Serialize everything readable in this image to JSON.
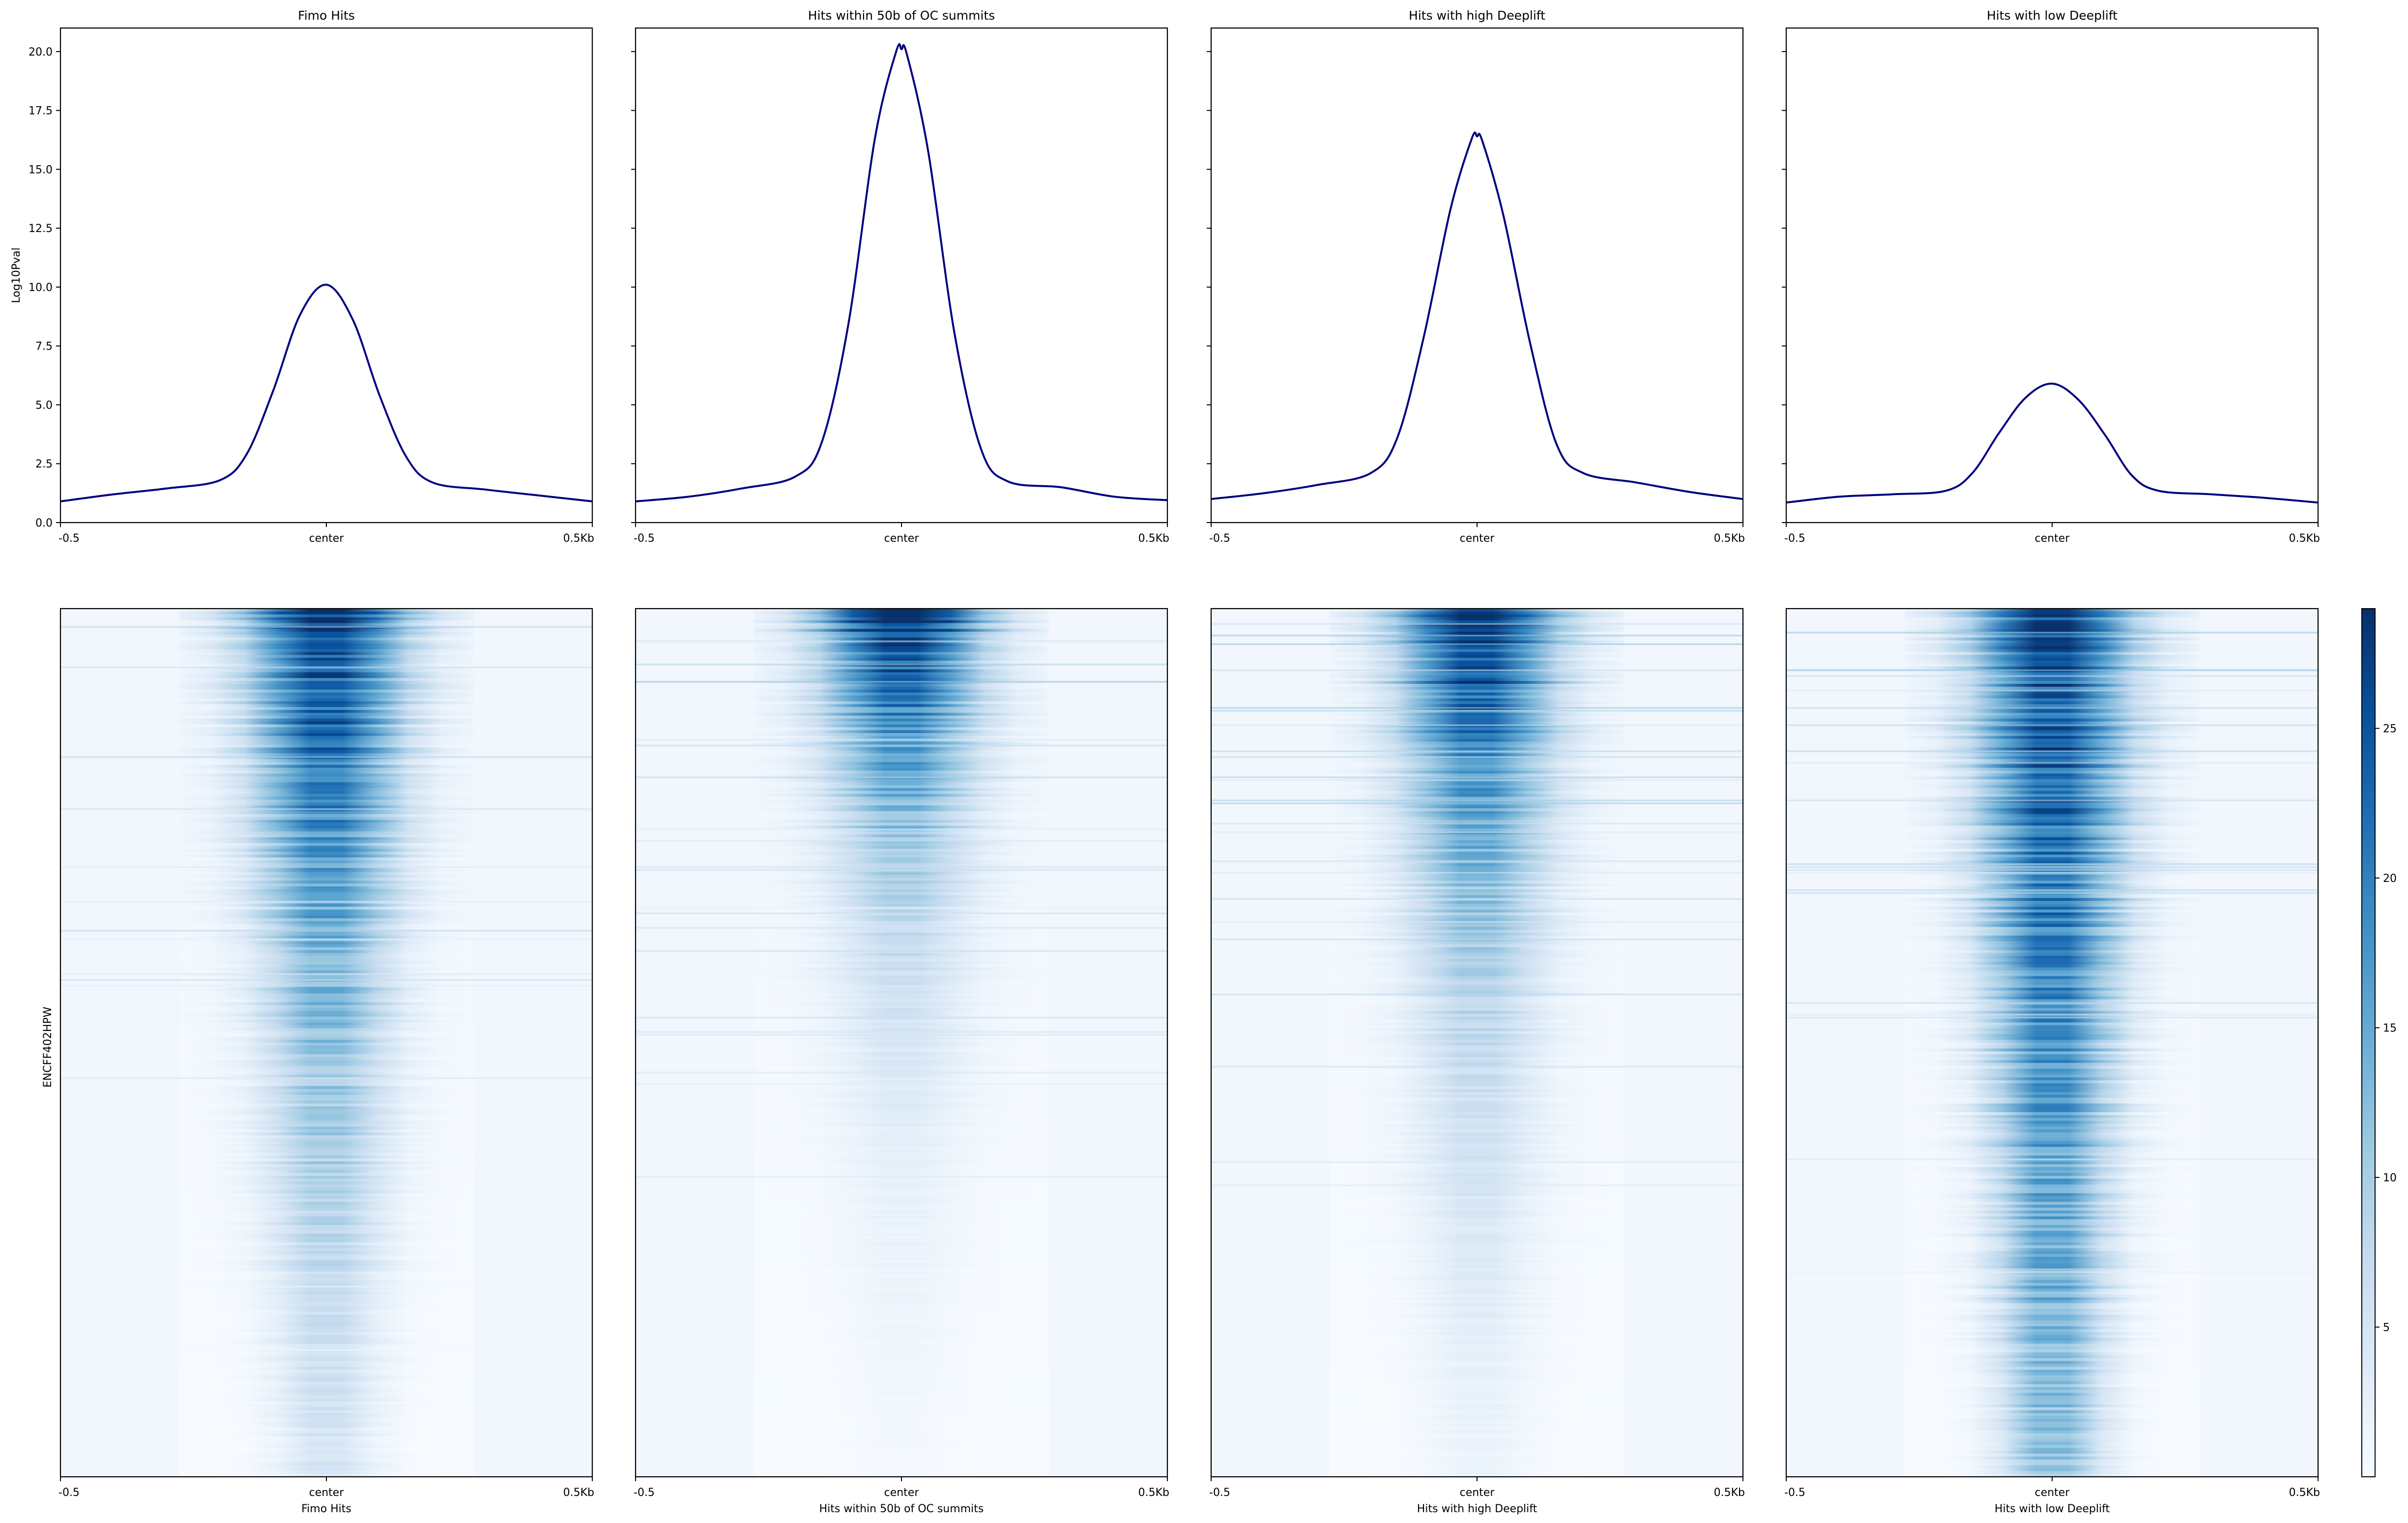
{
  "figure": {
    "heatmap_row_label": "ENCFF402HPW",
    "colorbar": {
      "ticks": [
        5,
        10,
        15,
        20,
        25
      ],
      "range": [
        0,
        29
      ],
      "colormap": "Blues"
    }
  },
  "chart_data": [
    {
      "type": "line",
      "title": "Fimo Hits",
      "ylabel": "Log10Pval",
      "xlabel": "",
      "ylim": [
        0,
        21
      ],
      "xlim": [
        -0.5,
        0.5
      ],
      "y_ticks": [
        0.0,
        2.5,
        5.0,
        7.5,
        10.0,
        12.5,
        15.0,
        17.5,
        20.0
      ],
      "x_ticks": [
        {
          "value": -0.5,
          "label": "-0.5"
        },
        {
          "value": 0,
          "label": "center"
        },
        {
          "value": 0.5,
          "label": "0.5Kb"
        }
      ],
      "series": [
        {
          "color": "#00007f",
          "x": [
            -0.5,
            -0.4,
            -0.3,
            -0.2,
            -0.15,
            -0.1,
            -0.05,
            0,
            0.05,
            0.1,
            0.15,
            0.2,
            0.3,
            0.4,
            0.5
          ],
          "y": [
            0.9,
            1.2,
            1.45,
            1.8,
            2.9,
            5.6,
            8.8,
            10.1,
            8.6,
            5.4,
            2.8,
            1.7,
            1.4,
            1.15,
            0.9
          ]
        }
      ]
    },
    {
      "type": "line",
      "title": "Hits within 50b of OC summits",
      "xlabel": "",
      "ylim": [
        0,
        21
      ],
      "xlim": [
        -0.5,
        0.5
      ],
      "x_ticks": [
        {
          "value": -0.5,
          "label": "-0.5"
        },
        {
          "value": 0,
          "label": "center"
        },
        {
          "value": 0.5,
          "label": "0.5Kb"
        }
      ],
      "series": [
        {
          "color": "#00007f",
          "x": [
            -0.5,
            -0.4,
            -0.3,
            -0.2,
            -0.15,
            -0.1,
            -0.05,
            -0.01,
            0,
            0.01,
            0.05,
            0.1,
            0.15,
            0.2,
            0.3,
            0.4,
            0.5
          ],
          "y": [
            0.9,
            1.1,
            1.45,
            1.95,
            3.4,
            8.4,
            16.3,
            20.0,
            20.1,
            19.9,
            15.8,
            8.0,
            3.1,
            1.75,
            1.5,
            1.1,
            0.95
          ]
        }
      ]
    },
    {
      "type": "line",
      "title": "Hits with high Deeplift",
      "xlabel": "",
      "ylim": [
        0,
        21
      ],
      "xlim": [
        -0.5,
        0.5
      ],
      "x_ticks": [
        {
          "value": -0.5,
          "label": "-0.5"
        },
        {
          "value": 0,
          "label": "center"
        },
        {
          "value": 0.5,
          "label": "0.5Kb"
        }
      ],
      "series": [
        {
          "color": "#00007f",
          "x": [
            -0.5,
            -0.4,
            -0.3,
            -0.2,
            -0.15,
            -0.1,
            -0.05,
            -0.01,
            0,
            0.01,
            0.05,
            0.1,
            0.15,
            0.2,
            0.3,
            0.4,
            0.5
          ],
          "y": [
            1.0,
            1.25,
            1.6,
            2.1,
            3.6,
            7.9,
            13.3,
            16.3,
            16.4,
            16.2,
            13.0,
            7.6,
            3.3,
            2.1,
            1.7,
            1.3,
            1.0
          ]
        }
      ]
    },
    {
      "type": "line",
      "title": "Hits with low Deeplift",
      "xlabel": "",
      "ylim": [
        0,
        21
      ],
      "xlim": [
        -0.5,
        0.5
      ],
      "x_ticks": [
        {
          "value": -0.5,
          "label": "-0.5"
        },
        {
          "value": 0,
          "label": "center"
        },
        {
          "value": 0.5,
          "label": "0.5Kb"
        }
      ],
      "series": [
        {
          "color": "#00007f",
          "x": [
            -0.5,
            -0.4,
            -0.3,
            -0.2,
            -0.15,
            -0.1,
            -0.05,
            0,
            0.05,
            0.1,
            0.15,
            0.2,
            0.3,
            0.4,
            0.5
          ],
          "y": [
            0.85,
            1.1,
            1.2,
            1.35,
            2.1,
            3.8,
            5.3,
            5.9,
            5.2,
            3.7,
            2.0,
            1.35,
            1.2,
            1.05,
            0.85
          ]
        }
      ]
    },
    {
      "type": "heatmap",
      "xlabel": "Fimo Hits",
      "ylabel": "ENCFF402HPW",
      "x_ticks": [
        {
          "value": -0.5,
          "label": "-0.5"
        },
        {
          "value": 0,
          "label": "center"
        },
        {
          "value": 0.5,
          "label": "0.5Kb"
        }
      ],
      "peak_value": 28,
      "decay": 0.6
    },
    {
      "type": "heatmap",
      "xlabel": "Hits within 50b of OC summits",
      "x_ticks": [
        {
          "value": -0.5,
          "label": "-0.5"
        },
        {
          "value": 0,
          "label": "center"
        },
        {
          "value": 0.5,
          "label": "0.5Kb"
        }
      ],
      "peak_value": 32,
      "decay": 0.25
    },
    {
      "type": "heatmap",
      "xlabel": "Hits with high Deeplift",
      "x_ticks": [
        {
          "value": -0.5,
          "label": "-0.5"
        },
        {
          "value": 0,
          "label": "center"
        },
        {
          "value": 0.5,
          "label": "0.5Kb"
        }
      ],
      "peak_value": 31,
      "decay": 0.35
    },
    {
      "type": "heatmap",
      "xlabel": "Hits with low Deeplift",
      "x_ticks": [
        {
          "value": -0.5,
          "label": "-0.5"
        },
        {
          "value": 0,
          "label": "center"
        },
        {
          "value": 0.5,
          "label": "0.5Kb"
        }
      ],
      "peak_value": 27,
      "decay": 1.3
    }
  ]
}
